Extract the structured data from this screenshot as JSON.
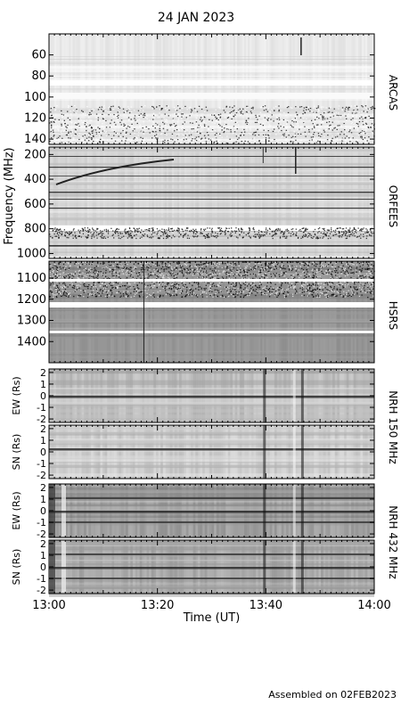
{
  "title": "24 JAN 2023",
  "footer": "Assembled on 02FEB2023",
  "chart_data": {
    "type": "heatmap",
    "title": "24 JAN 2023",
    "x": {
      "label": "Time (UT)",
      "range": [
        "13:00",
        "14:00"
      ],
      "ticks": [
        "13:00",
        "13:20",
        "13:40",
        "14:00"
      ]
    },
    "shared_ylabel": "Frequency (MHz)",
    "panels": [
      {
        "instrument": "ARCAS",
        "ylim": [
          40,
          145
        ],
        "ticks": [
          60,
          80,
          100,
          120,
          140
        ],
        "tick_labels": [
          "60",
          "80",
          "100",
          "120",
          "140"
        ]
      },
      {
        "instrument": "ORFEES",
        "ylim": [
          140,
          1040
        ],
        "ticks": [
          200,
          400,
          600,
          800,
          1000
        ],
        "tick_labels": [
          "200",
          "400",
          "600",
          "800",
          "1000"
        ]
      },
      {
        "instrument": "HSRS",
        "ylim": [
          1020,
          1500
        ],
        "ticks": [
          1100,
          1200,
          1300,
          1400
        ],
        "tick_labels": [
          "1100",
          "1200",
          "1300",
          "1400"
        ]
      },
      {
        "instrument_group": "NRH 150 MHz",
        "ylabel": "EW (Rs)",
        "ylim": [
          -2.3,
          2.3
        ],
        "ticks": [
          -2,
          -1,
          0,
          1,
          2
        ],
        "tick_labels": [
          "-2",
          "-1",
          "0",
          "1",
          "2"
        ]
      },
      {
        "instrument_group": "NRH 150 MHz",
        "ylabel": "SN (Rs)",
        "ylim": [
          -2.3,
          2.3
        ],
        "ticks": [
          -2,
          -1,
          0,
          1,
          2
        ],
        "tick_labels": [
          "-2",
          "-1",
          "0",
          "1",
          "2"
        ]
      },
      {
        "instrument_group": "NRH 432 MHz",
        "ylabel": "EW (Rs)",
        "ylim": [
          -2.3,
          2.3
        ],
        "ticks": [
          -2,
          -1,
          0,
          1,
          2
        ],
        "tick_labels": [
          "-2",
          "-1",
          "0",
          "1",
          "2"
        ]
      },
      {
        "instrument_group": "NRH 432 MHz",
        "ylabel": "SN (Rs)",
        "ylim": [
          -2.3,
          2.3
        ],
        "ticks": [
          -2,
          -1,
          0,
          1,
          2
        ],
        "tick_labels": [
          "-2",
          "-1",
          "0",
          "1",
          "2"
        ]
      }
    ],
    "right_labels": [
      "ARCAS",
      "ORFEES",
      "HSRS",
      "NRH 150 MHz",
      "NRH 432 MHz"
    ],
    "colormap": "grayscale"
  }
}
